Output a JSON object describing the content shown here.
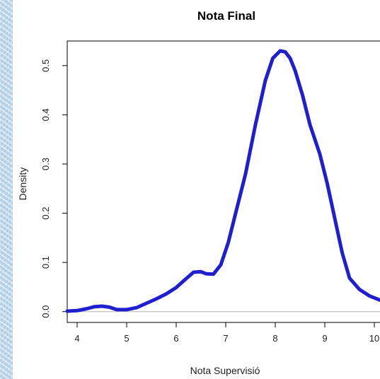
{
  "chart_data": {
    "type": "line",
    "title": "Nota Final",
    "xlabel": "Nota Supervisió",
    "ylabel": "Density",
    "xlim": [
      3.8,
      10.2
    ],
    "ylim": [
      -0.022,
      0.55
    ],
    "x_ticks": [
      4,
      5,
      6,
      7,
      8,
      9,
      10
    ],
    "x_tick_labels": [
      "4",
      "5",
      "6",
      "7",
      "8",
      "9",
      "10"
    ],
    "y_ticks": [
      0.0,
      0.1,
      0.2,
      0.3,
      0.4,
      0.5
    ],
    "y_tick_labels": [
      "0.0",
      "0.1",
      "0.2",
      "0.3",
      "0.4",
      "0.5"
    ],
    "baseline": 0,
    "series": [
      {
        "color": "#1f1fd0",
        "x": [
          3.8,
          4.0,
          4.2,
          4.35,
          4.5,
          4.65,
          4.8,
          5.0,
          5.2,
          5.4,
          5.6,
          5.8,
          6.0,
          6.2,
          6.35,
          6.5,
          6.6,
          6.75,
          6.9,
          7.05,
          7.2,
          7.4,
          7.6,
          7.8,
          7.95,
          8.1,
          8.2,
          8.3,
          8.4,
          8.55,
          8.7,
          8.9,
          9.05,
          9.2,
          9.35,
          9.5,
          9.7,
          9.9,
          10.2
        ],
        "y": [
          0.001,
          0.002,
          0.006,
          0.01,
          0.011,
          0.009,
          0.004,
          0.004,
          0.008,
          0.017,
          0.026,
          0.036,
          0.049,
          0.067,
          0.08,
          0.081,
          0.077,
          0.076,
          0.095,
          0.14,
          0.2,
          0.28,
          0.38,
          0.47,
          0.515,
          0.53,
          0.528,
          0.515,
          0.49,
          0.44,
          0.38,
          0.32,
          0.26,
          0.19,
          0.12,
          0.068,
          0.045,
          0.032,
          0.02
        ]
      }
    ]
  }
}
